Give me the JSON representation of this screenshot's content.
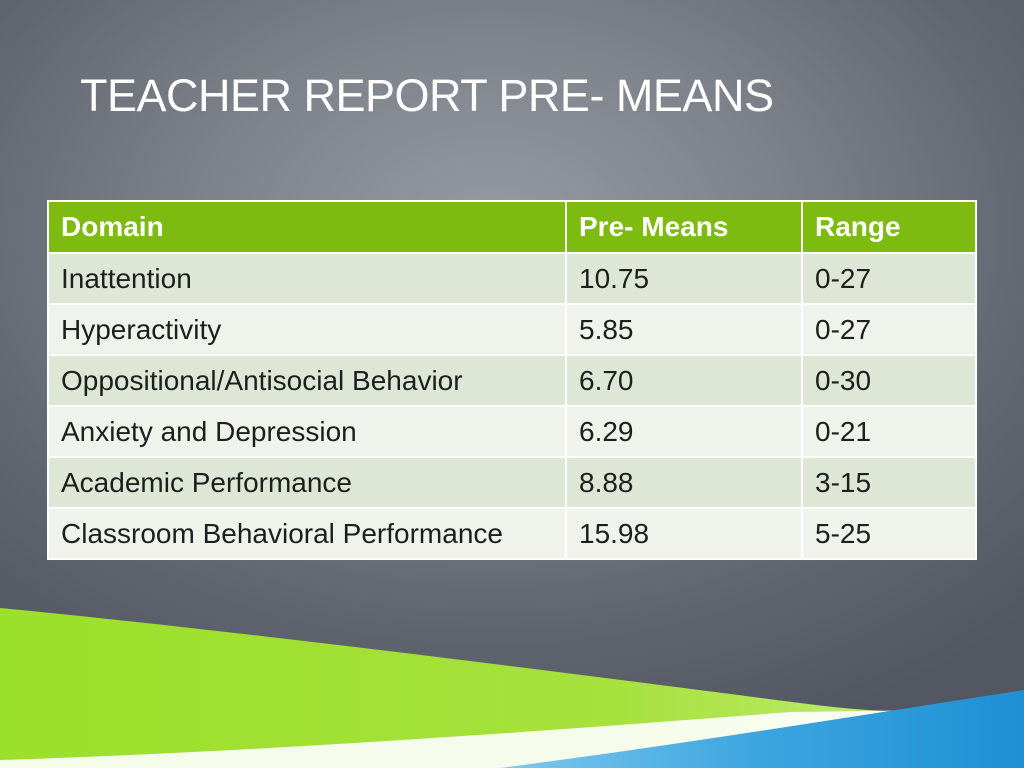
{
  "slide": {
    "title": "TEACHER REPORT PRE- MEANS"
  },
  "table": {
    "headers": {
      "domain": "Domain",
      "means": "Pre- Means",
      "range": "Range"
    },
    "rows": [
      {
        "domain": "Inattention",
        "means": "10.75",
        "range": "0-27"
      },
      {
        "domain": "Hyperactivity",
        "means": "5.85",
        "range": "0-27"
      },
      {
        "domain": "Oppositional/Antisocial Behavior",
        "means": "6.70",
        "range": "0-30"
      },
      {
        "domain": "Anxiety and Depression",
        "means": "6.29",
        "range": "0-21"
      },
      {
        "domain": "Academic Performance",
        "means": "8.88",
        "range": "3-15"
      },
      {
        "domain": "Classroom Behavioral Performance",
        "means": "15.98",
        "range": "5-25"
      }
    ]
  },
  "colors": {
    "header_green": "#7dbb11",
    "row_light": "#f0f3ec",
    "row_tint": "#dee7d5",
    "background_gray": "#7c8089",
    "swoosh_green": "#8ed21c",
    "swoosh_blue": "#2f9fd9"
  }
}
